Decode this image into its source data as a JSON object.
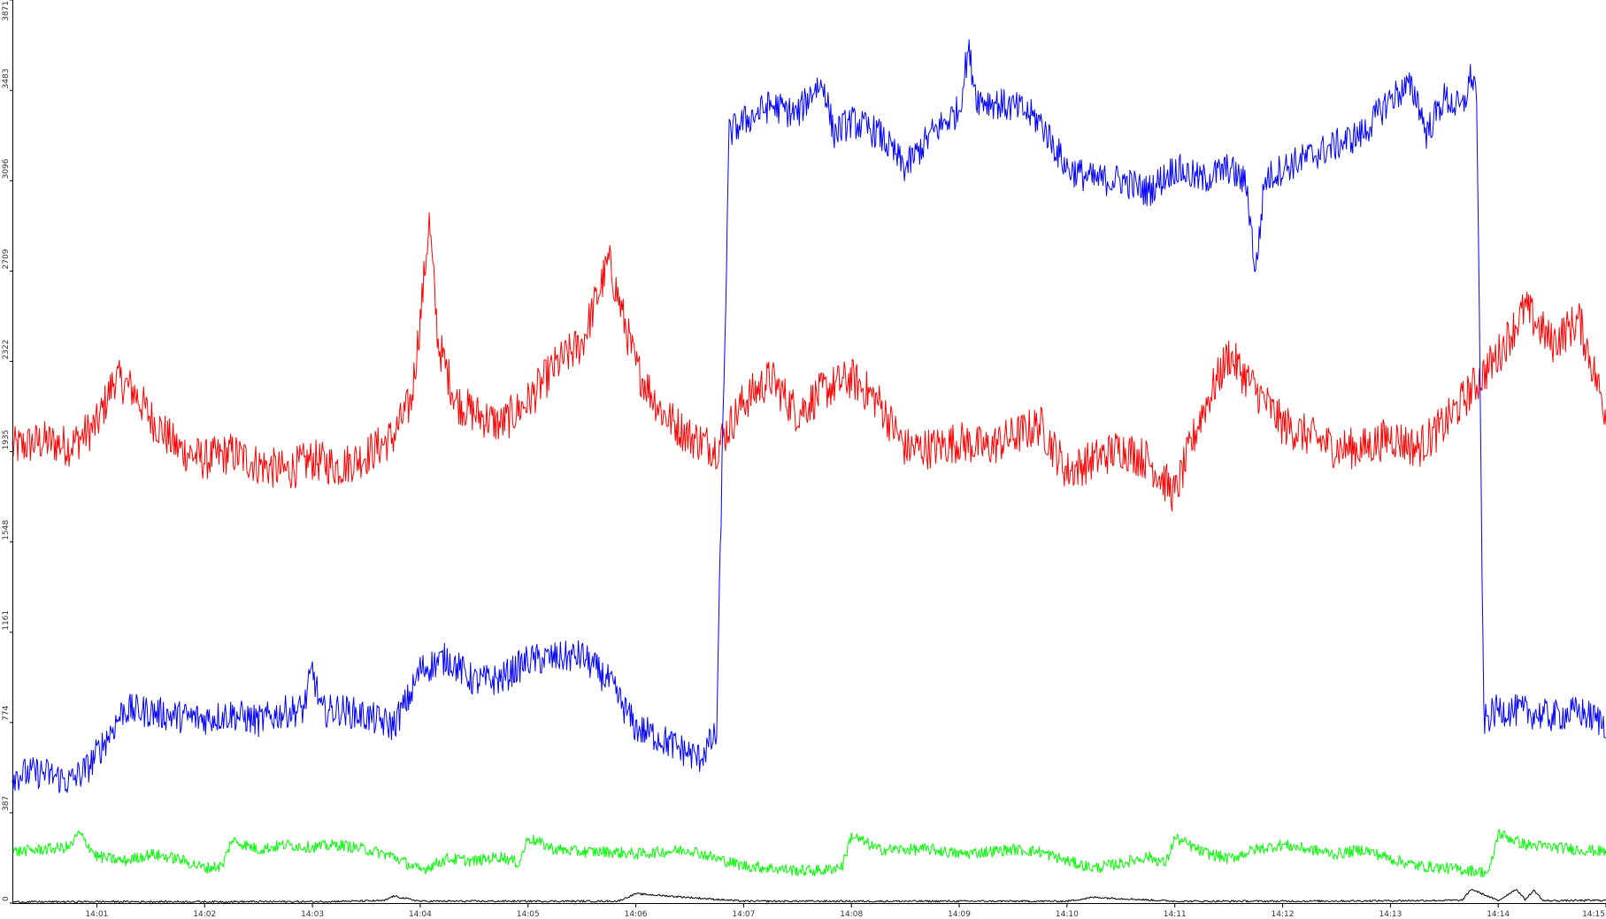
{
  "chart_data": {
    "type": "line",
    "title": "",
    "xlabel": "",
    "ylabel": "",
    "grid": false,
    "ylim": [
      0,
      3871
    ],
    "xlim": [
      "14:00:13",
      "14:15:00"
    ],
    "y_ticks": [
      "0",
      "387",
      "774",
      "1161",
      "1548",
      "1935",
      "2322",
      "2709",
      "3096",
      "3483",
      "3871"
    ],
    "x_ticks": [
      "14:01",
      "14:02",
      "14:03",
      "14:04",
      "14:05",
      "14:06",
      "14:07",
      "14:08",
      "14:09",
      "14:10",
      "14:11",
      "14:12",
      "14:13",
      "14:14",
      "14:15"
    ],
    "series": [
      {
        "color": "#ff0000",
        "x": [
          "14:00:13",
          "14:00:30",
          "14:00:45",
          "14:01:00",
          "14:01:10",
          "14:01:20",
          "14:01:30",
          "14:01:45",
          "14:02:00",
          "14:02:15",
          "14:02:30",
          "14:02:45",
          "14:03:00",
          "14:03:15",
          "14:03:30",
          "14:03:45",
          "14:03:55",
          "14:04:00",
          "14:04:05",
          "14:04:10",
          "14:04:20",
          "14:04:30",
          "14:04:45",
          "14:05:00",
          "14:05:15",
          "14:05:30",
          "14:05:45",
          "14:06:00",
          "14:06:15",
          "14:06:30",
          "14:06:45",
          "14:07:00",
          "14:07:15",
          "14:07:30",
          "14:07:45",
          "14:08:00",
          "14:08:15",
          "14:08:30",
          "14:08:45",
          "14:09:00",
          "14:09:15",
          "14:09:30",
          "14:09:45",
          "14:10:00",
          "14:10:15",
          "14:10:30",
          "14:10:45",
          "14:11:00",
          "14:11:15",
          "14:11:30",
          "14:11:45",
          "14:12:00",
          "14:12:15",
          "14:12:30",
          "14:12:45",
          "14:13:00",
          "14:13:15",
          "14:13:30",
          "14:13:45",
          "14:14:00",
          "14:14:15",
          "14:14:30",
          "14:14:45",
          "14:15:00"
        ],
        "values": [
          1950,
          1980,
          1960,
          2050,
          2250,
          2200,
          2080,
          1950,
          1900,
          1930,
          1880,
          1850,
          1900,
          1870,
          1920,
          2000,
          2150,
          2500,
          2920,
          2400,
          2150,
          2100,
          2050,
          2150,
          2300,
          2400,
          2750,
          2300,
          2100,
          2000,
          1950,
          2150,
          2250,
          2100,
          2200,
          2250,
          2150,
          1950,
          1950,
          1980,
          1950,
          2000,
          2050,
          1850,
          1900,
          1950,
          1900,
          1750,
          2100,
          2350,
          2200,
          2050,
          2000,
          1950,
          1950,
          2000,
          1950,
          2050,
          2200,
          2350,
          2550,
          2400,
          2500,
          2100
        ]
      },
      {
        "color": "#0000ff",
        "x": [
          "14:00:13",
          "14:00:30",
          "14:00:45",
          "14:00:55",
          "14:01:05",
          "14:01:15",
          "14:01:30",
          "14:01:45",
          "14:02:00",
          "14:02:15",
          "14:02:30",
          "14:02:45",
          "14:02:55",
          "14:03:00",
          "14:03:05",
          "14:03:15",
          "14:03:30",
          "14:03:45",
          "14:03:55",
          "14:04:00",
          "14:04:15",
          "14:04:30",
          "14:04:45",
          "14:05:00",
          "14:05:15",
          "14:05:30",
          "14:05:45",
          "14:06:00",
          "14:06:10",
          "14:06:20",
          "14:06:35",
          "14:06:45",
          "14:06:47",
          "14:06:52",
          "14:07:00",
          "14:07:15",
          "14:07:30",
          "14:07:40",
          "14:07:45",
          "14:07:50",
          "14:08:00",
          "14:08:15",
          "14:08:30",
          "14:08:45",
          "14:09:00",
          "14:09:05",
          "14:09:10",
          "14:09:20",
          "14:09:35",
          "14:09:45",
          "14:10:00",
          "14:10:15",
          "14:10:30",
          "14:10:45",
          "14:11:00",
          "14:11:15",
          "14:11:30",
          "14:11:40",
          "14:11:45",
          "14:11:50",
          "14:12:00",
          "14:12:15",
          "14:12:30",
          "14:12:45",
          "14:13:00",
          "14:13:10",
          "14:13:15",
          "14:13:20",
          "14:13:30",
          "14:13:40",
          "14:13:45",
          "14:13:48",
          "14:13:52",
          "14:14:00",
          "14:14:15",
          "14:14:30",
          "14:14:45",
          "14:15:00"
        ],
        "values": [
          550,
          560,
          520,
          580,
          700,
          830,
          820,
          800,
          790,
          810,
          780,
          820,
          830,
          1000,
          820,
          830,
          800,
          760,
          900,
          1000,
          1050,
          950,
          960,
          1040,
          1050,
          1060,
          950,
          750,
          720,
          680,
          620,
          720,
          1500,
          3300,
          3350,
          3420,
          3380,
          3500,
          3500,
          3300,
          3350,
          3300,
          3150,
          3300,
          3400,
          3660,
          3450,
          3430,
          3400,
          3350,
          3150,
          3100,
          3100,
          3050,
          3150,
          3100,
          3150,
          3080,
          2700,
          3100,
          3150,
          3200,
          3250,
          3300,
          3450,
          3500,
          3450,
          3300,
          3450,
          3400,
          3550,
          3480,
          780,
          830,
          820,
          800,
          820,
          770
        ]
      },
      {
        "color": "#00ff00",
        "x": [
          "14:00:13",
          "14:00:30",
          "14:00:45",
          "14:00:50",
          "14:01:00",
          "14:01:15",
          "14:01:30",
          "14:01:45",
          "14:02:00",
          "14:02:10",
          "14:02:15",
          "14:02:30",
          "14:02:45",
          "14:03:00",
          "14:03:15",
          "14:03:30",
          "14:03:45",
          "14:04:00",
          "14:04:15",
          "14:04:30",
          "14:04:45",
          "14:04:55",
          "14:05:00",
          "14:05:15",
          "14:05:30",
          "14:05:45",
          "14:06:00",
          "14:06:15",
          "14:06:30",
          "14:06:45",
          "14:07:00",
          "14:07:15",
          "14:07:30",
          "14:07:45",
          "14:07:55",
          "14:08:00",
          "14:08:15",
          "14:08:30",
          "14:08:45",
          "14:09:00",
          "14:09:15",
          "14:09:30",
          "14:09:45",
          "14:10:00",
          "14:10:15",
          "14:10:30",
          "14:10:45",
          "14:10:55",
          "14:11:00",
          "14:11:15",
          "14:11:30",
          "14:11:45",
          "14:12:00",
          "14:12:15",
          "14:12:30",
          "14:12:45",
          "14:13:00",
          "14:13:15",
          "14:13:30",
          "14:13:45",
          "14:13:55",
          "14:14:00",
          "14:14:15",
          "14:14:30",
          "14:14:45",
          "14:15:00"
        ],
        "values": [
          220,
          230,
          240,
          300,
          200,
          180,
          210,
          190,
          150,
          160,
          270,
          230,
          250,
          240,
          250,
          230,
          200,
          140,
          190,
          180,
          200,
          170,
          280,
          230,
          220,
          220,
          210,
          220,
          230,
          190,
          160,
          150,
          140,
          140,
          160,
          290,
          230,
          230,
          230,
          210,
          220,
          230,
          220,
          180,
          150,
          170,
          200,
          170,
          280,
          220,
          190,
          230,
          250,
          230,
          210,
          230,
          190,
          160,
          150,
          140,
          130,
          300,
          250,
          240,
          230,
          220
        ]
      },
      {
        "color": "#000000",
        "x": [
          "14:00:13",
          "14:01:00",
          "14:02:00",
          "14:03:00",
          "14:03:40",
          "14:03:45",
          "14:04:00",
          "14:05:00",
          "14:05:50",
          "14:06:00",
          "14:07:00",
          "14:08:00",
          "14:09:00",
          "14:10:00",
          "14:10:15",
          "14:11:00",
          "14:12:00",
          "14:13:00",
          "14:13:40",
          "14:13:45",
          "14:14:00",
          "14:14:10",
          "14:14:15",
          "14:14:20",
          "14:14:25",
          "14:15:00"
        ],
        "values": [
          5,
          6,
          6,
          6,
          10,
          30,
          8,
          8,
          8,
          40,
          8,
          8,
          8,
          8,
          25,
          8,
          8,
          10,
          12,
          60,
          10,
          60,
          15,
          55,
          10,
          12
        ]
      }
    ]
  }
}
